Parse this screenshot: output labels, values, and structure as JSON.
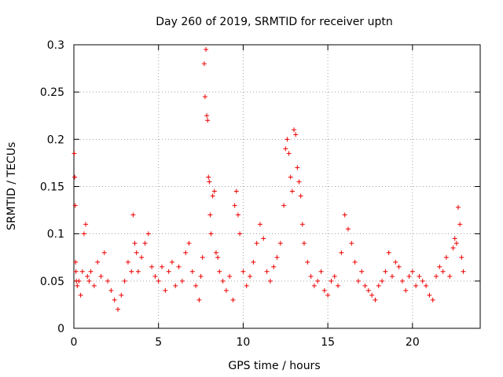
{
  "chart_data": {
    "type": "scatter",
    "title": "Day 260 of 2019, SRMTID for receiver uptn",
    "xlabel": "GPS time / hours",
    "ylabel": "SRMTID / TECUs",
    "xlim": [
      0,
      24
    ],
    "ylim": [
      0,
      0.3
    ],
    "x_ticks": [
      0,
      5,
      10,
      15,
      20
    ],
    "x_tick_labels": [
      "0",
      "5",
      "10",
      "15",
      "20"
    ],
    "y_ticks": [
      0,
      0.05,
      0.1,
      0.15,
      0.2,
      0.25,
      0.3
    ],
    "y_tick_labels": [
      "0",
      "0.05",
      "0.1",
      "0.15",
      "0.2",
      "0.25",
      "0.3"
    ],
    "grid": true,
    "marker": "plus",
    "color": "#ee0000",
    "series": [
      {
        "name": "SRMTID",
        "x": [
          0.02,
          0.05,
          0.08,
          0.1,
          0.12,
          0.15,
          0.2,
          0.3,
          0.4,
          0.5,
          0.6,
          0.7,
          0.8,
          0.9,
          1.0,
          1.2,
          1.4,
          1.6,
          1.8,
          2.0,
          2.2,
          2.4,
          2.6,
          2.8,
          3.0,
          3.2,
          3.4,
          3.5,
          3.6,
          3.7,
          3.8,
          4.0,
          4.2,
          4.4,
          4.6,
          4.8,
          5.0,
          5.2,
          5.4,
          5.6,
          5.8,
          6.0,
          6.2,
          6.4,
          6.6,
          6.8,
          7.0,
          7.2,
          7.4,
          7.5,
          7.6,
          7.7,
          7.75,
          7.8,
          7.85,
          7.9,
          7.95,
          8.0,
          8.05,
          8.1,
          8.2,
          8.3,
          8.4,
          8.5,
          8.6,
          8.8,
          9.0,
          9.2,
          9.4,
          9.5,
          9.6,
          9.7,
          9.8,
          10.0,
          10.2,
          10.4,
          10.6,
          10.8,
          11.0,
          11.2,
          11.4,
          11.6,
          11.8,
          12.0,
          12.2,
          12.4,
          12.5,
          12.6,
          12.7,
          12.8,
          12.9,
          13.0,
          13.1,
          13.2,
          13.3,
          13.4,
          13.5,
          13.6,
          13.8,
          14.0,
          14.2,
          14.4,
          14.6,
          14.8,
          15.0,
          15.2,
          15.4,
          15.6,
          15.8,
          16.0,
          16.2,
          16.4,
          16.6,
          16.8,
          17.0,
          17.2,
          17.4,
          17.6,
          17.8,
          18.0,
          18.2,
          18.4,
          18.6,
          18.8,
          19.0,
          19.2,
          19.4,
          19.6,
          19.8,
          20.0,
          20.2,
          20.4,
          20.6,
          20.8,
          21.0,
          21.2,
          21.4,
          21.6,
          21.8,
          22.0,
          22.2,
          22.4,
          22.5,
          22.6,
          22.7,
          22.8,
          22.9,
          23.0
        ],
        "y": [
          0.185,
          0.16,
          0.13,
          0.07,
          0.06,
          0.05,
          0.045,
          0.05,
          0.035,
          0.06,
          0.1,
          0.11,
          0.055,
          0.05,
          0.06,
          0.045,
          0.07,
          0.055,
          0.08,
          0.05,
          0.04,
          0.03,
          0.02,
          0.035,
          0.05,
          0.07,
          0.06,
          0.12,
          0.09,
          0.08,
          0.06,
          0.075,
          0.09,
          0.1,
          0.065,
          0.055,
          0.05,
          0.065,
          0.04,
          0.06,
          0.07,
          0.045,
          0.065,
          0.05,
          0.08,
          0.09,
          0.06,
          0.045,
          0.03,
          0.055,
          0.075,
          0.28,
          0.245,
          0.295,
          0.225,
          0.22,
          0.16,
          0.155,
          0.12,
          0.1,
          0.14,
          0.145,
          0.08,
          0.075,
          0.06,
          0.05,
          0.04,
          0.055,
          0.03,
          0.13,
          0.145,
          0.12,
          0.1,
          0.06,
          0.045,
          0.055,
          0.07,
          0.09,
          0.11,
          0.095,
          0.06,
          0.05,
          0.065,
          0.075,
          0.09,
          0.13,
          0.19,
          0.2,
          0.185,
          0.16,
          0.145,
          0.21,
          0.205,
          0.17,
          0.155,
          0.14,
          0.11,
          0.09,
          0.07,
          0.055,
          0.045,
          0.05,
          0.06,
          0.04,
          0.035,
          0.05,
          0.055,
          0.045,
          0.08,
          0.12,
          0.105,
          0.09,
          0.07,
          0.05,
          0.06,
          0.045,
          0.04,
          0.035,
          0.03,
          0.045,
          0.05,
          0.06,
          0.08,
          0.055,
          0.07,
          0.065,
          0.05,
          0.04,
          0.055,
          0.06,
          0.045,
          0.055,
          0.05,
          0.045,
          0.035,
          0.03,
          0.055,
          0.065,
          0.06,
          0.075,
          0.055,
          0.085,
          0.095,
          0.09,
          0.128,
          0.11,
          0.075,
          0.06
        ]
      }
    ]
  }
}
